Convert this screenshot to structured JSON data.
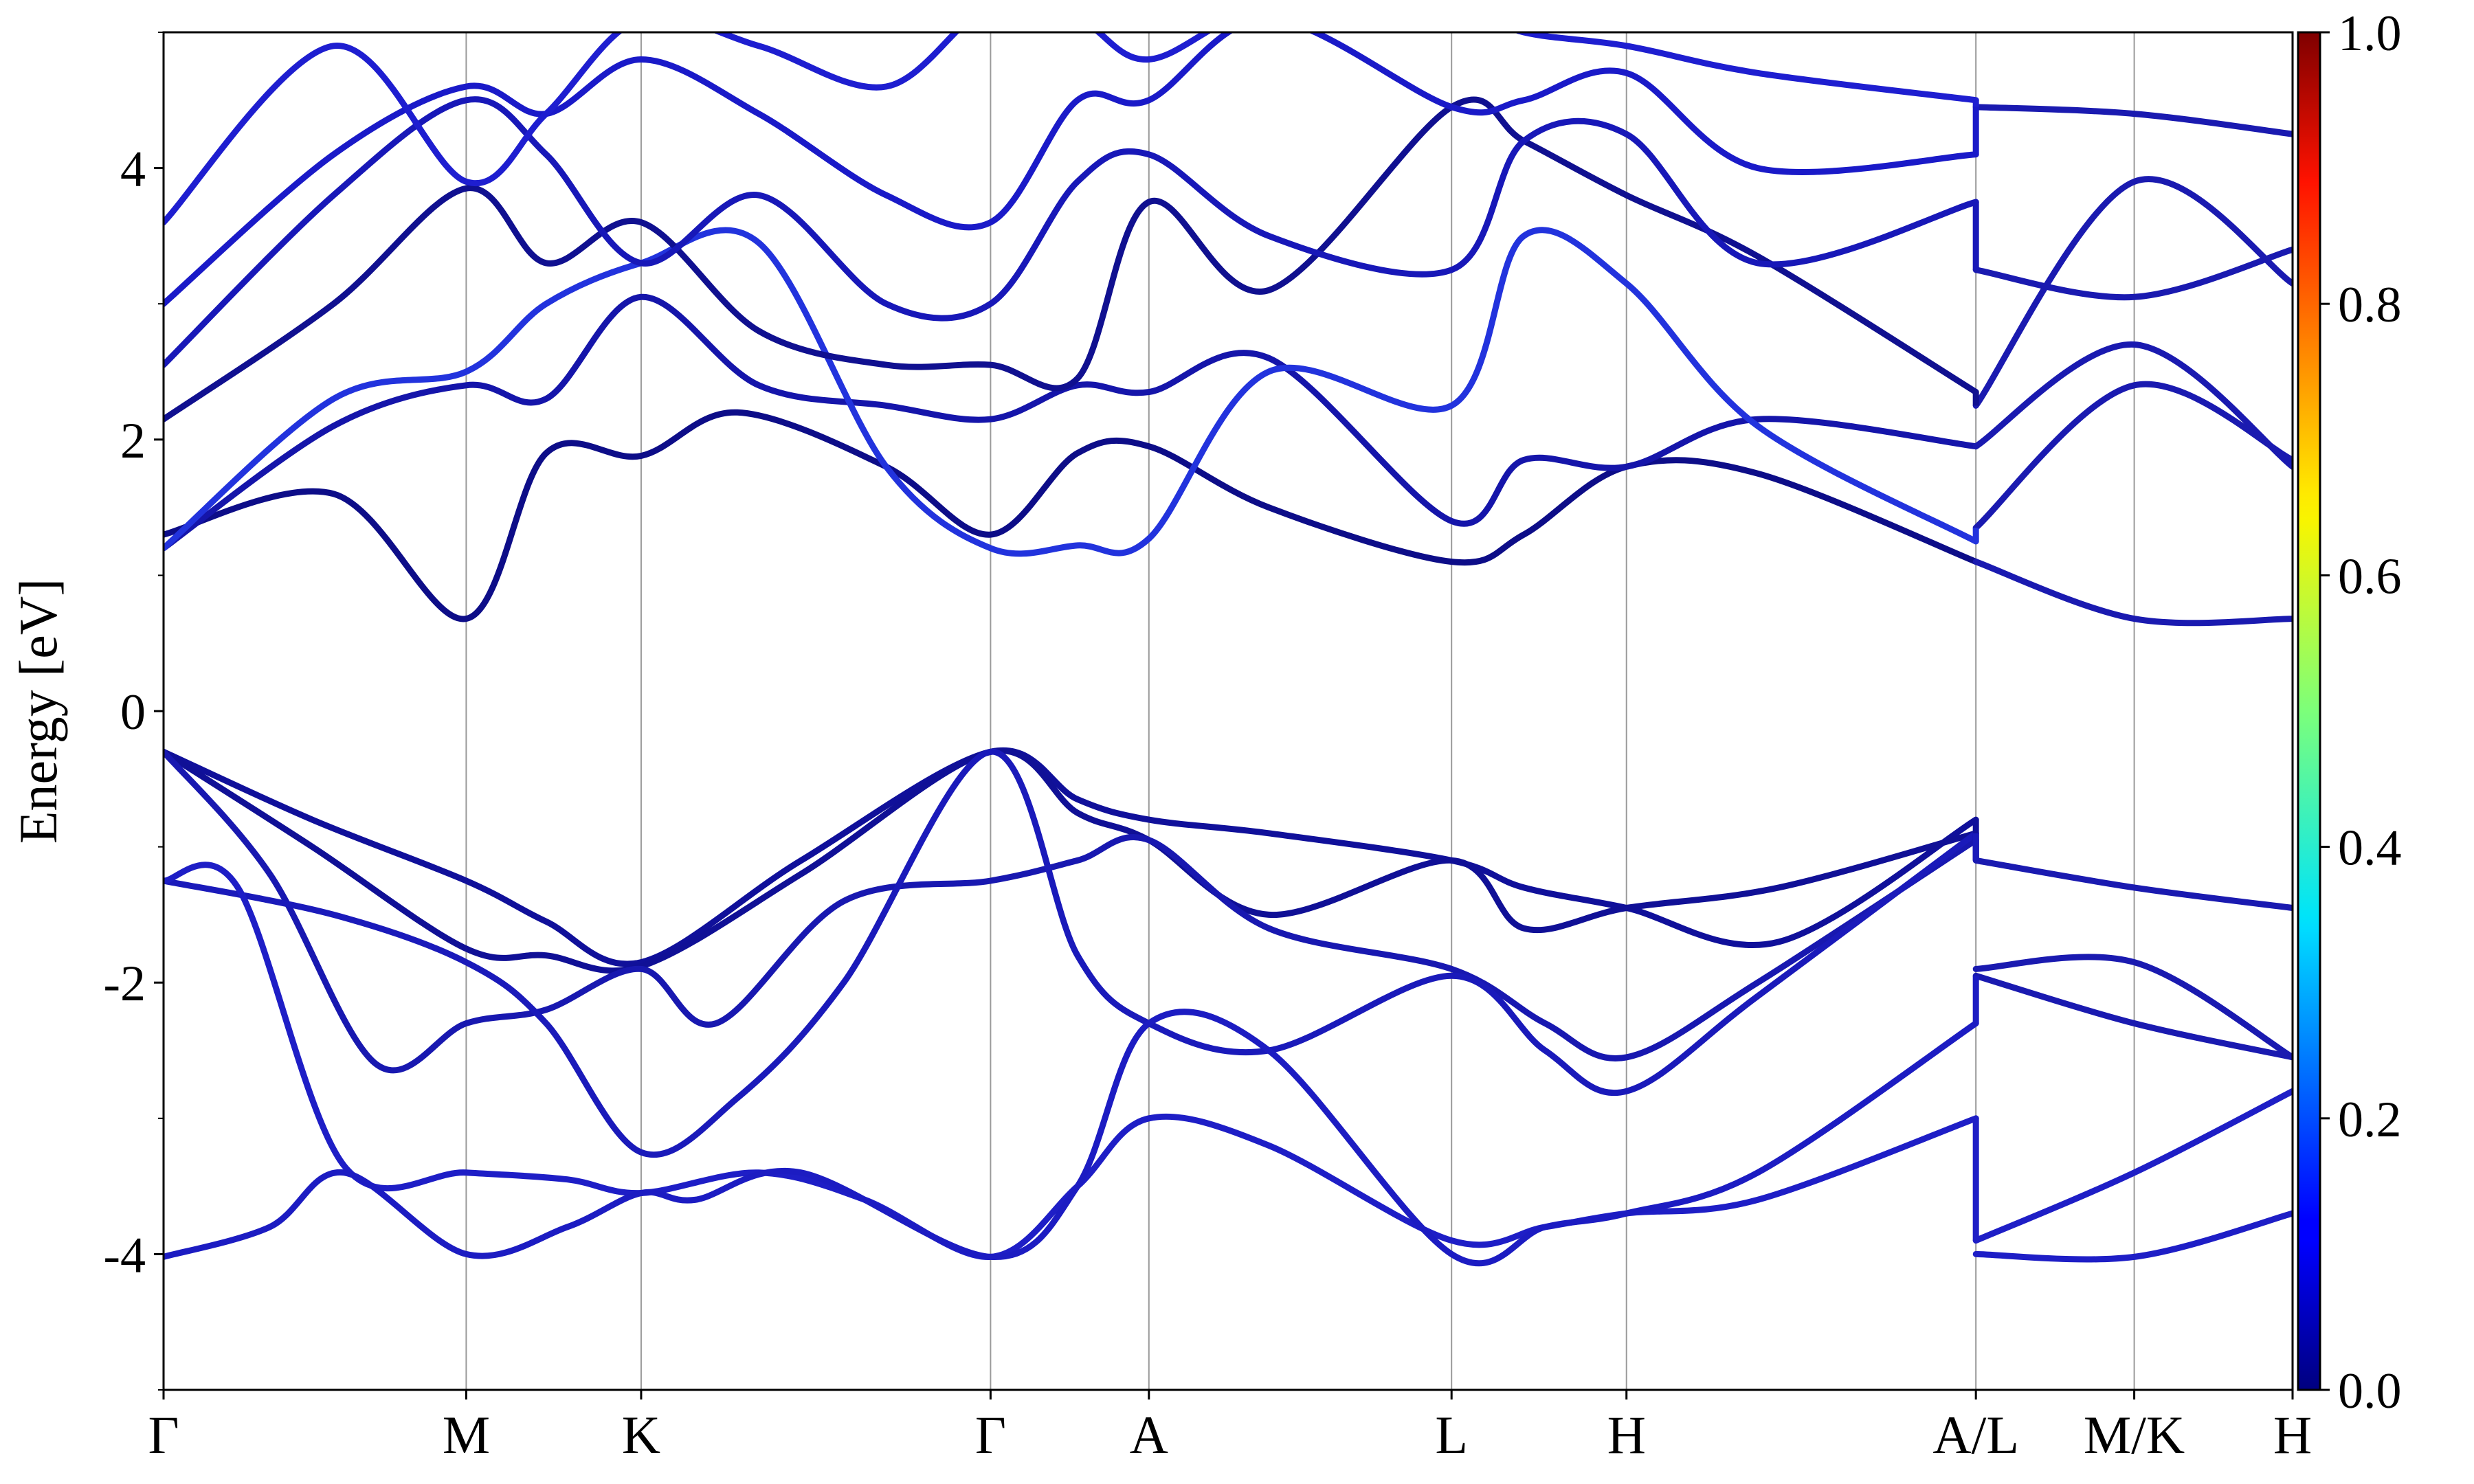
{
  "chart_data": {
    "type": "line",
    "title": "",
    "xlabel": "",
    "ylabel": "Energy [eV]",
    "ylim": [
      -5,
      5
    ],
    "y_ticks": [
      "-4",
      "-2",
      "0",
      "2",
      "4"
    ],
    "y_tick_values": [
      -4,
      -2,
      0,
      2,
      4
    ],
    "x_ticks": [
      "Γ",
      "M",
      "K",
      "Γ",
      "A",
      "L",
      "H",
      "A/L",
      "M/K",
      "H"
    ],
    "x_tick_values": [
      0,
      1.424,
      2.247,
      3.891,
      4.636,
      6.06,
      6.883,
      8.527,
      9.272,
      10.017
    ],
    "grid": "vertical lines at high-symmetry points",
    "colorbar": {
      "colormap": "jet",
      "range": [
        0.0,
        1.0
      ],
      "tick_labels": [
        "0.0",
        "0.2",
        "0.4",
        "0.6",
        "0.8",
        "1.0"
      ],
      "tick_values": [
        0,
        0.2,
        0.4,
        0.6,
        0.8,
        1.0
      ]
    },
    "series": [
      {
        "color": "#10109a",
        "x": [
          0,
          0.7,
          1.424,
          1.8,
          2.247,
          3.0,
          3.891,
          4.3,
          4.636,
          5.2,
          6.06,
          6.4,
          6.883,
          7.6,
          8.527
        ],
        "y": [
          -0.3,
          -0.8,
          -1.25,
          -1.55,
          -1.85,
          -1.1,
          -0.3,
          -0.65,
          -0.8,
          -0.9,
          -1.1,
          -1.3,
          -1.45,
          -1.7,
          -0.8
        ]
      },
      {
        "color": "#101096",
        "x": [
          0,
          0.7,
          1.424,
          1.8,
          2.247,
          3.0,
          3.891,
          4.3,
          4.636,
          5.2,
          6.06,
          6.4,
          6.883,
          7.6,
          8.527
        ],
        "y": [
          -0.3,
          -1.0,
          -1.75,
          -1.8,
          -1.88,
          -1.2,
          -0.3,
          -0.75,
          -0.95,
          -1.5,
          -1.1,
          -1.6,
          -1.45,
          -1.3,
          -0.9
        ]
      },
      {
        "color": "#1818b0",
        "x": [
          0,
          0.5,
          1.0,
          1.424,
          1.8,
          2.247,
          2.6,
          3.2,
          3.891,
          4.3,
          4.636,
          5.2,
          6.06,
          6.5,
          6.883,
          7.5,
          8.527
        ],
        "y": [
          -0.3,
          -1.2,
          -2.6,
          -2.3,
          -2.2,
          -1.9,
          -2.3,
          -1.4,
          -1.25,
          -1.1,
          -0.95,
          -1.6,
          -1.9,
          -2.3,
          -2.55,
          -2.0,
          -0.95
        ]
      },
      {
        "color": "#1a1aba",
        "x": [
          0,
          0.8,
          1.424,
          1.8,
          2.247,
          2.7,
          3.2,
          3.891,
          4.3,
          4.636,
          5.2,
          6.06,
          6.5,
          6.883,
          7.5,
          8.527
        ],
        "y": [
          -1.25,
          -1.5,
          -1.85,
          -2.3,
          -3.25,
          -2.85,
          -2.0,
          -0.3,
          -1.8,
          -2.3,
          -2.5,
          -1.95,
          -2.5,
          -2.8,
          -2.1,
          -0.9
        ]
      },
      {
        "color": "#1e1ec6",
        "x": [
          0,
          0.35,
          0.85,
          1.424,
          1.9,
          2.247,
          2.8,
          3.3,
          3.891,
          4.3,
          4.636,
          5.2,
          6.06,
          6.5,
          6.883,
          7.5,
          8.527
        ],
        "y": [
          -1.25,
          -1.3,
          -3.35,
          -3.4,
          -3.45,
          -3.55,
          -3.4,
          -3.6,
          -4.02,
          -3.5,
          -3.0,
          -3.2,
          -3.9,
          -3.8,
          -3.7,
          -3.6,
          -3.0
        ]
      },
      {
        "color": "#1c1cc2",
        "x": [
          0,
          0.5,
          0.85,
          1.424,
          1.9,
          2.247,
          2.5,
          3.0,
          3.891,
          4.3,
          4.636,
          5.2,
          6.06,
          6.5,
          6.883,
          7.5,
          8.527
        ],
        "y": [
          -4.02,
          -3.8,
          -3.4,
          -4.0,
          -3.8,
          -3.55,
          -3.6,
          -3.4,
          -4.02,
          -3.5,
          -2.3,
          -2.5,
          -4.0,
          -3.8,
          -3.7,
          -3.4,
          -2.3
        ]
      },
      {
        "color": "#1a1ab0",
        "x": [
          8.527,
          9.272,
          10.017
        ],
        "y": [
          -1.1,
          -1.3,
          -1.45
        ]
      },
      {
        "color": "#1a1ab0",
        "x": [
          8.527,
          9.272,
          10.017
        ],
        "y": [
          -1.9,
          -1.85,
          -2.55
        ]
      },
      {
        "color": "#1a1ab0",
        "x": [
          8.527,
          9.272,
          10.017
        ],
        "y": [
          -1.95,
          -2.3,
          -2.55
        ]
      },
      {
        "color": "#1e1ec6",
        "x": [
          8.527,
          9.272,
          10.017
        ],
        "y": [
          -4.0,
          -4.02,
          -3.7
        ]
      },
      {
        "color": "#1e1ec6",
        "x": [
          8.527,
          9.272,
          10.017
        ],
        "y": [
          -3.9,
          -3.4,
          -2.8
        ]
      },
      {
        "color": "#0d0d88",
        "x": [
          0,
          0.8,
          1.424,
          1.8,
          2.247,
          2.7,
          3.4,
          3.891,
          4.3,
          4.636,
          5.2,
          6.06,
          6.4,
          6.883,
          7.5,
          8.527
        ],
        "y": [
          1.3,
          1.6,
          0.68,
          1.9,
          1.88,
          2.2,
          1.8,
          1.3,
          1.9,
          1.95,
          1.5,
          1.1,
          1.3,
          1.8,
          1.75,
          1.1
        ]
      },
      {
        "color": "#1515aa",
        "x": [
          0,
          0.8,
          1.424,
          1.8,
          2.247,
          2.8,
          3.4,
          3.891,
          4.3,
          4.636,
          5.2,
          6.06,
          6.4,
          6.883,
          7.5,
          8.527
        ],
        "y": [
          1.2,
          2.1,
          2.4,
          2.3,
          3.05,
          2.4,
          2.25,
          2.15,
          2.4,
          2.35,
          2.6,
          1.4,
          1.85,
          1.8,
          2.15,
          1.95
        ]
      },
      {
        "color": "#2233dd",
        "x": [
          0,
          0.8,
          1.424,
          1.8,
          2.247,
          2.8,
          3.4,
          3.891,
          4.3,
          4.636,
          5.2,
          6.06,
          6.4,
          6.883,
          7.5,
          8.527
        ],
        "y": [
          1.2,
          2.3,
          2.5,
          3.0,
          3.3,
          3.45,
          1.8,
          1.2,
          1.22,
          1.27,
          2.5,
          2.25,
          3.5,
          3.15,
          2.1,
          1.25
        ]
      },
      {
        "color": "#101090",
        "x": [
          0,
          0.8,
          1.424,
          1.8,
          2.247,
          2.8,
          3.4,
          3.891,
          4.3,
          4.636,
          5.2,
          6.06,
          6.4,
          6.883,
          7.5,
          8.527
        ],
        "y": [
          2.15,
          3.0,
          3.85,
          3.3,
          3.6,
          2.8,
          2.55,
          2.55,
          2.45,
          3.75,
          3.1,
          4.45,
          4.2,
          3.8,
          3.35,
          2.35
        ]
      },
      {
        "color": "#1818b8",
        "x": [
          0,
          0.8,
          1.424,
          1.8,
          2.247,
          2.8,
          3.4,
          3.891,
          4.3,
          4.636,
          5.2,
          6.06,
          6.4,
          6.883,
          7.5,
          8.527
        ],
        "y": [
          2.55,
          3.8,
          4.5,
          4.1,
          3.3,
          3.8,
          3.0,
          3.0,
          3.9,
          4.1,
          3.5,
          3.25,
          4.2,
          4.25,
          3.3,
          3.75
        ]
      },
      {
        "color": "#1a1ac8",
        "x": [
          0,
          0.8,
          1.424,
          1.8,
          2.247,
          2.8,
          3.4,
          3.891,
          4.3,
          4.636,
          5.2,
          6.06,
          6.4,
          6.883,
          7.5,
          8.527
        ],
        "y": [
          3.0,
          4.1,
          4.6,
          4.4,
          4.8,
          4.4,
          3.8,
          3.6,
          4.5,
          4.5,
          5.1,
          4.45,
          4.5,
          4.7,
          4.0,
          4.1
        ]
      },
      {
        "color": "#1e1ed0",
        "x": [
          0,
          0.8,
          1.424,
          1.8,
          2.247,
          2.8,
          3.4,
          3.891,
          4.3,
          4.636,
          5.2,
          6.06,
          6.4,
          6.883,
          7.5,
          8.527
        ],
        "y": [
          3.6,
          4.9,
          3.9,
          4.4,
          5.1,
          4.9,
          4.6,
          5.2,
          5.1,
          4.8,
          5.2,
          5.2,
          5.0,
          4.9,
          4.7,
          4.5
        ]
      },
      {
        "color": "#1a1ab0",
        "x": [
          8.527,
          9.272,
          10.017
        ],
        "y": [
          1.1,
          0.68,
          0.68
        ]
      },
      {
        "color": "#1a1ab0",
        "x": [
          8.527,
          9.272,
          10.017
        ],
        "y": [
          1.35,
          2.4,
          1.85
        ]
      },
      {
        "color": "#1a1ab0",
        "x": [
          8.527,
          9.272,
          10.017
        ],
        "y": [
          1.95,
          2.7,
          1.8
        ]
      },
      {
        "color": "#1a1ab0",
        "x": [
          8.527,
          9.272,
          10.017
        ],
        "y": [
          2.25,
          3.9,
          3.15
        ]
      },
      {
        "color": "#1a1ab0",
        "x": [
          8.527,
          9.272,
          10.017
        ],
        "y": [
          3.25,
          3.05,
          3.4
        ]
      },
      {
        "color": "#1a1ab0",
        "x": [
          8.527,
          9.272,
          10.017
        ],
        "y": [
          4.45,
          4.4,
          4.25
        ]
      }
    ]
  }
}
